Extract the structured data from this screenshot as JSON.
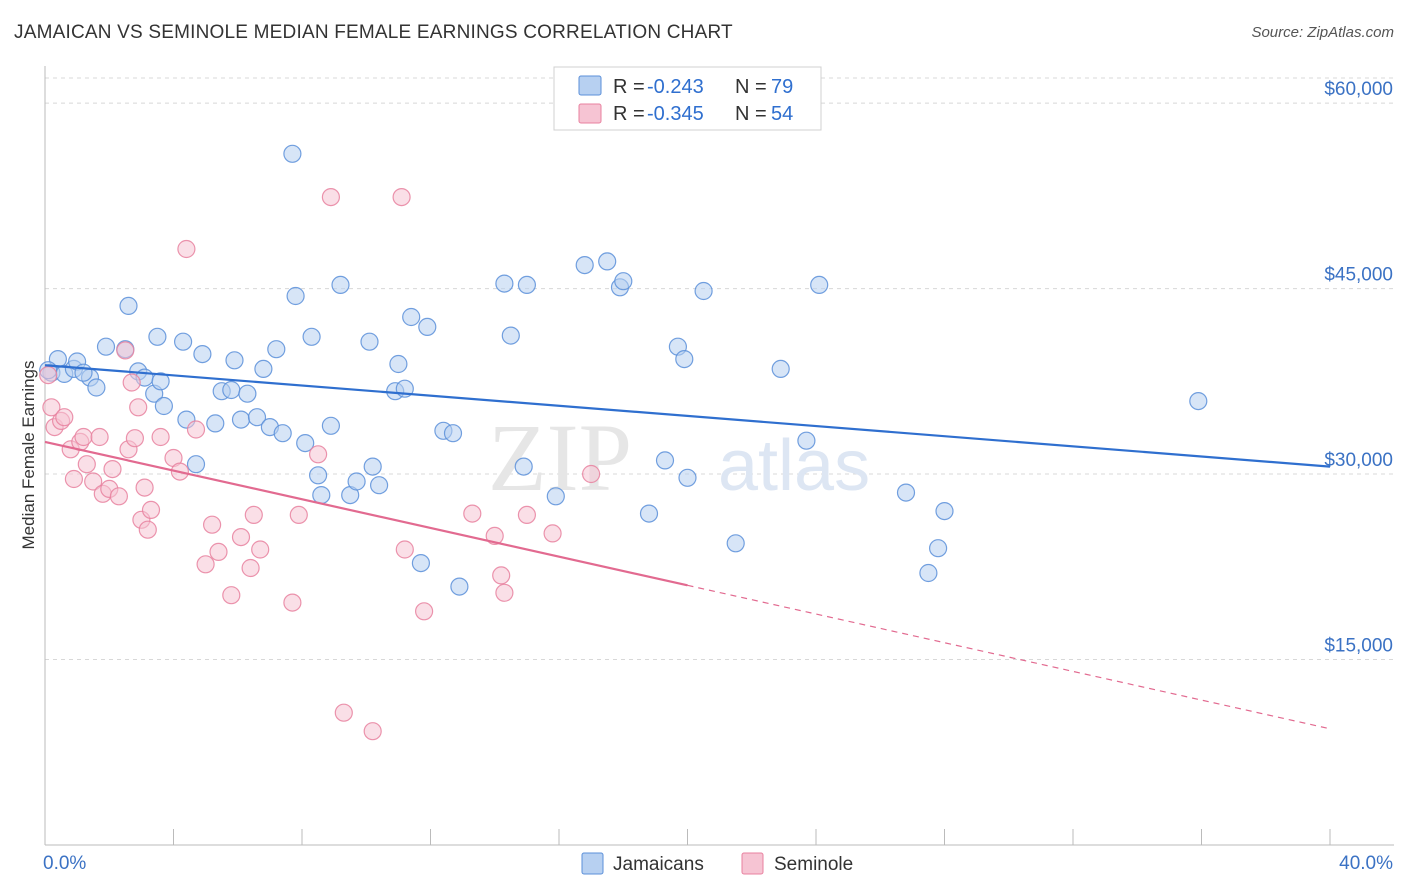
{
  "title": "JAMAICAN VS SEMINOLE MEDIAN FEMALE EARNINGS CORRELATION CHART",
  "source": "Source: ZipAtlas.com",
  "colors": {
    "jamaicans": "#5b8fd9",
    "jamaicans_fill": "#b7d0f1",
    "jamaicans_line": "#2f6fcf",
    "seminole": "#e8819f",
    "seminole_fill": "#f6c4d3",
    "seminole_line": "#e26a90",
    "axis_text": "#3b72c4",
    "grid": "#d8d8d8"
  },
  "stats_box": {
    "rows": [
      {
        "r_label": "R = ",
        "r_value": "-0.243",
        "n_label": "N = ",
        "n_value": "79"
      },
      {
        "r_label": "R = ",
        "r_value": "-0.345",
        "n_label": "N = ",
        "n_value": "54"
      }
    ]
  },
  "chart_data": {
    "type": "scatter",
    "title": "JAMAICAN VS SEMINOLE MEDIAN FEMALE EARNINGS CORRELATION CHART",
    "xlabel": "",
    "ylabel": "Median Female Earnings",
    "xlim": [
      0,
      40
    ],
    "ylim": [
      0,
      63000
    ],
    "x_tick_labels": [
      "0.0%",
      "40.0%"
    ],
    "y_ticks": [
      15000,
      30000,
      45000,
      60000
    ],
    "y_tick_labels": [
      "$15,000",
      "$30,000",
      "$45,000",
      "$60,000"
    ],
    "grid": true,
    "legend_position": "bottom-center",
    "series": [
      {
        "name": "Jamaicans",
        "color": "#5b8fd9",
        "trend": {
          "x0": 0,
          "y0": 38800,
          "x1": 40,
          "y1": 30600,
          "solid_until": 40
        },
        "points": [
          [
            0.2,
            38200
          ],
          [
            0.4,
            39300
          ],
          [
            0.6,
            38100
          ],
          [
            0.9,
            38500
          ],
          [
            1.0,
            39100
          ],
          [
            1.4,
            37800
          ],
          [
            1.2,
            38200
          ],
          [
            1.6,
            37000
          ],
          [
            1.9,
            40300
          ],
          [
            2.5,
            40100
          ],
          [
            2.6,
            43600
          ],
          [
            2.9,
            38300
          ],
          [
            3.1,
            37800
          ],
          [
            3.4,
            36500
          ],
          [
            3.6,
            37500
          ],
          [
            3.7,
            35500
          ],
          [
            3.5,
            41100
          ],
          [
            4.3,
            40700
          ],
          [
            4.4,
            34400
          ],
          [
            4.7,
            30800
          ],
          [
            4.9,
            39700
          ],
          [
            5.3,
            34100
          ],
          [
            5.5,
            36700
          ],
          [
            5.8,
            36800
          ],
          [
            5.9,
            39200
          ],
          [
            6.1,
            34400
          ],
          [
            6.3,
            36500
          ],
          [
            6.6,
            34600
          ],
          [
            6.8,
            38500
          ],
          [
            7.0,
            33800
          ],
          [
            7.2,
            40100
          ],
          [
            7.4,
            33300
          ],
          [
            7.7,
            55900
          ],
          [
            7.8,
            44400
          ],
          [
            8.1,
            32500
          ],
          [
            8.3,
            41100
          ],
          [
            8.5,
            29900
          ],
          [
            8.6,
            28300
          ],
          [
            8.9,
            33900
          ],
          [
            9.2,
            45300
          ],
          [
            9.5,
            28300
          ],
          [
            9.7,
            29400
          ],
          [
            10.1,
            40700
          ],
          [
            10.2,
            30600
          ],
          [
            10.4,
            29100
          ],
          [
            10.9,
            36700
          ],
          [
            11.0,
            38900
          ],
          [
            11.2,
            36900
          ],
          [
            11.4,
            42700
          ],
          [
            11.7,
            22800
          ],
          [
            11.9,
            41900
          ],
          [
            12.4,
            33500
          ],
          [
            12.7,
            33300
          ],
          [
            12.9,
            20900
          ],
          [
            14.3,
            45400
          ],
          [
            14.5,
            41200
          ],
          [
            14.9,
            30600
          ],
          [
            15.0,
            45300
          ],
          [
            15.9,
            28200
          ],
          [
            16.8,
            46900
          ],
          [
            17.5,
            47200
          ],
          [
            17.9,
            45100
          ],
          [
            18.0,
            45600
          ],
          [
            18.8,
            26800
          ],
          [
            19.3,
            31100
          ],
          [
            19.7,
            40300
          ],
          [
            19.9,
            39300
          ],
          [
            20.0,
            29700
          ],
          [
            20.5,
            44800
          ],
          [
            21.5,
            24400
          ],
          [
            22.9,
            38500
          ],
          [
            23.7,
            32700
          ],
          [
            24.1,
            45300
          ],
          [
            26.8,
            28500
          ],
          [
            27.5,
            22000
          ],
          [
            27.8,
            24000
          ],
          [
            28.0,
            27000
          ],
          [
            35.9,
            35900
          ],
          [
            0.1,
            38400
          ]
        ]
      },
      {
        "name": "Seminole",
        "color": "#e8819f",
        "trend": {
          "x0": 0,
          "y0": 32600,
          "x1": 40,
          "y1": 9400,
          "solid_until": 20
        },
        "points": [
          [
            0.1,
            38000
          ],
          [
            0.2,
            35400
          ],
          [
            0.3,
            33800
          ],
          [
            0.5,
            34300
          ],
          [
            0.6,
            34600
          ],
          [
            0.8,
            32000
          ],
          [
            0.9,
            29600
          ],
          [
            1.1,
            32600
          ],
          [
            1.2,
            33000
          ],
          [
            1.3,
            30800
          ],
          [
            1.5,
            29400
          ],
          [
            1.7,
            33000
          ],
          [
            1.8,
            28400
          ],
          [
            2.0,
            28800
          ],
          [
            2.1,
            30400
          ],
          [
            2.3,
            28200
          ],
          [
            2.5,
            40000
          ],
          [
            2.6,
            32000
          ],
          [
            2.7,
            37400
          ],
          [
            2.8,
            32900
          ],
          [
            2.9,
            35400
          ],
          [
            3.0,
            26300
          ],
          [
            3.1,
            28900
          ],
          [
            3.2,
            25500
          ],
          [
            3.3,
            27100
          ],
          [
            3.6,
            33000
          ],
          [
            4.0,
            31300
          ],
          [
            4.2,
            30200
          ],
          [
            4.4,
            48200
          ],
          [
            4.7,
            33600
          ],
          [
            5.0,
            22700
          ],
          [
            5.2,
            25900
          ],
          [
            5.4,
            23700
          ],
          [
            5.8,
            20200
          ],
          [
            6.1,
            24900
          ],
          [
            6.4,
            22400
          ],
          [
            6.5,
            26700
          ],
          [
            6.7,
            23900
          ],
          [
            7.7,
            19600
          ],
          [
            7.9,
            26700
          ],
          [
            8.5,
            31600
          ],
          [
            8.9,
            52400
          ],
          [
            9.3,
            10700
          ],
          [
            10.2,
            9200
          ],
          [
            11.1,
            52400
          ],
          [
            11.2,
            23900
          ],
          [
            11.8,
            18900
          ],
          [
            13.3,
            26800
          ],
          [
            14.0,
            25000
          ],
          [
            14.2,
            21800
          ],
          [
            14.3,
            20400
          ],
          [
            15.0,
            26700
          ],
          [
            15.8,
            25200
          ],
          [
            17.0,
            30000
          ]
        ]
      }
    ]
  },
  "legend": {
    "items": [
      {
        "label": "Jamaicans"
      },
      {
        "label": "Seminole"
      }
    ]
  },
  "watermark": {
    "part1": "ZIP",
    "part2": "atlas"
  }
}
